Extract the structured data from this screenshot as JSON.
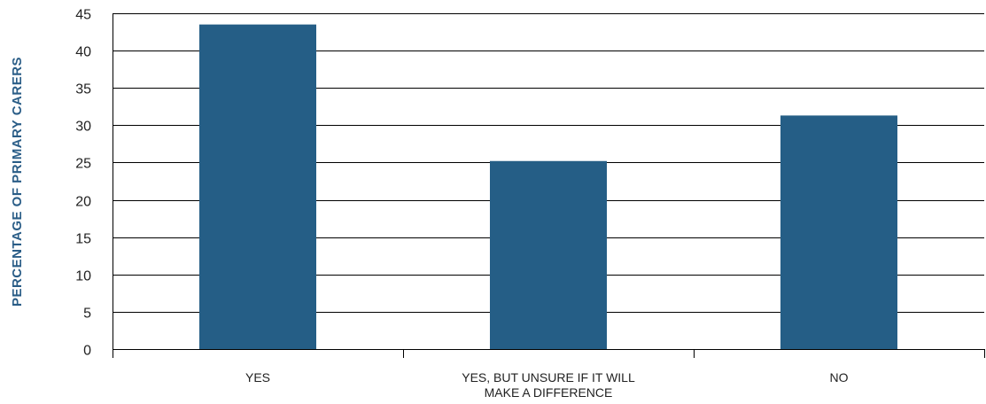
{
  "chart_data": {
    "type": "bar",
    "title": "",
    "xlabel": "",
    "ylabel": "PERCENTAGE OF PRIMARY CARERS",
    "categories": [
      [
        "YES"
      ],
      [
        "YES, BUT UNSURE IF IT WILL",
        "MAKE A DIFFERENCE"
      ],
      [
        "NO"
      ]
    ],
    "values": [
      43.5,
      25.2,
      31.3
    ],
    "ylim": [
      0,
      45
    ],
    "yticks": [
      0,
      5,
      10,
      15,
      20,
      25,
      30,
      35,
      40,
      45
    ],
    "grid": true,
    "legend": "none",
    "colors": {
      "bar": "#255e86",
      "grid": "#000000",
      "ylabel": "#2a5d87"
    }
  }
}
